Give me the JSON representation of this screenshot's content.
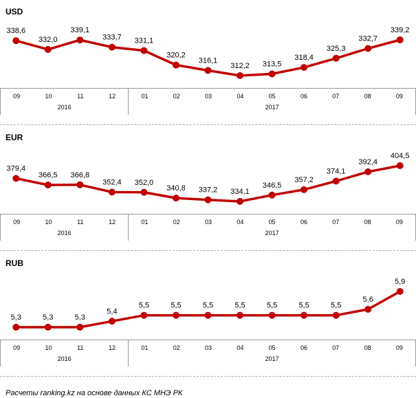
{
  "footer": {
    "note": "Расчеты ranking.kz на основе данных КС МНЭ РК"
  },
  "colors": {
    "line": "#c00000",
    "axis_border": "#999999",
    "separator": "#ababab",
    "text": "#000000"
  },
  "chart_data": [
    {
      "type": "line",
      "title": "USD",
      "x": [
        "09",
        "10",
        "11",
        "12",
        "01",
        "02",
        "03",
        "04",
        "05",
        "06",
        "07",
        "08",
        "09"
      ],
      "x_groups": [
        {
          "label": "2016",
          "span": 4
        },
        {
          "label": "2017",
          "span": 9
        }
      ],
      "values": [
        338.6,
        332.0,
        339.1,
        333.7,
        331.1,
        320.2,
        316.1,
        312.2,
        313.5,
        318.4,
        325.3,
        332.7,
        339.2
      ],
      "labels": [
        "338,6",
        "332,0",
        "339,1",
        "333,7",
        "331,1",
        "320,2",
        "316,1",
        "312,2",
        "313,5",
        "318,4",
        "325,3",
        "332,7",
        "339,2"
      ],
      "ylim": [
        312.2,
        339.2
      ],
      "line_color": "#c00000",
      "marker": "circle",
      "grid": false,
      "legend": "none"
    },
    {
      "type": "line",
      "title": "EUR",
      "x": [
        "09",
        "10",
        "11",
        "12",
        "01",
        "02",
        "03",
        "04",
        "05",
        "06",
        "07",
        "08",
        "09"
      ],
      "x_groups": [
        {
          "label": "2016",
          "span": 4
        },
        {
          "label": "2017",
          "span": 9
        }
      ],
      "values": [
        379.4,
        366.5,
        366.8,
        352.4,
        352.0,
        340.8,
        337.2,
        334.1,
        346.5,
        357.2,
        374.1,
        392.4,
        404.5
      ],
      "labels": [
        "379,4",
        "366,5",
        "366,8",
        "352,4",
        "352,0",
        "340,8",
        "337,2",
        "334,1",
        "346,5",
        "357,2",
        "374,1",
        "392,4",
        "404,5"
      ],
      "ylim": [
        334.1,
        404.5
      ],
      "line_color": "#c00000",
      "marker": "circle",
      "grid": false,
      "legend": "none"
    },
    {
      "type": "line",
      "title": "RUB",
      "x": [
        "09",
        "10",
        "11",
        "12",
        "01",
        "02",
        "03",
        "04",
        "05",
        "06",
        "07",
        "08",
        "09"
      ],
      "x_groups": [
        {
          "label": "2016",
          "span": 4
        },
        {
          "label": "2017",
          "span": 9
        }
      ],
      "values": [
        5.3,
        5.3,
        5.3,
        5.4,
        5.5,
        5.5,
        5.5,
        5.5,
        5.5,
        5.5,
        5.5,
        5.6,
        5.9
      ],
      "labels": [
        "5,3",
        "5,3",
        "5,3",
        "5,4",
        "5,5",
        "5,5",
        "5,5",
        "5,5",
        "5,5",
        "5,5",
        "5,5",
        "5,6",
        "5,9"
      ],
      "ylim": [
        5.3,
        5.9
      ],
      "line_color": "#c00000",
      "marker": "circle",
      "grid": false,
      "legend": "none"
    }
  ]
}
